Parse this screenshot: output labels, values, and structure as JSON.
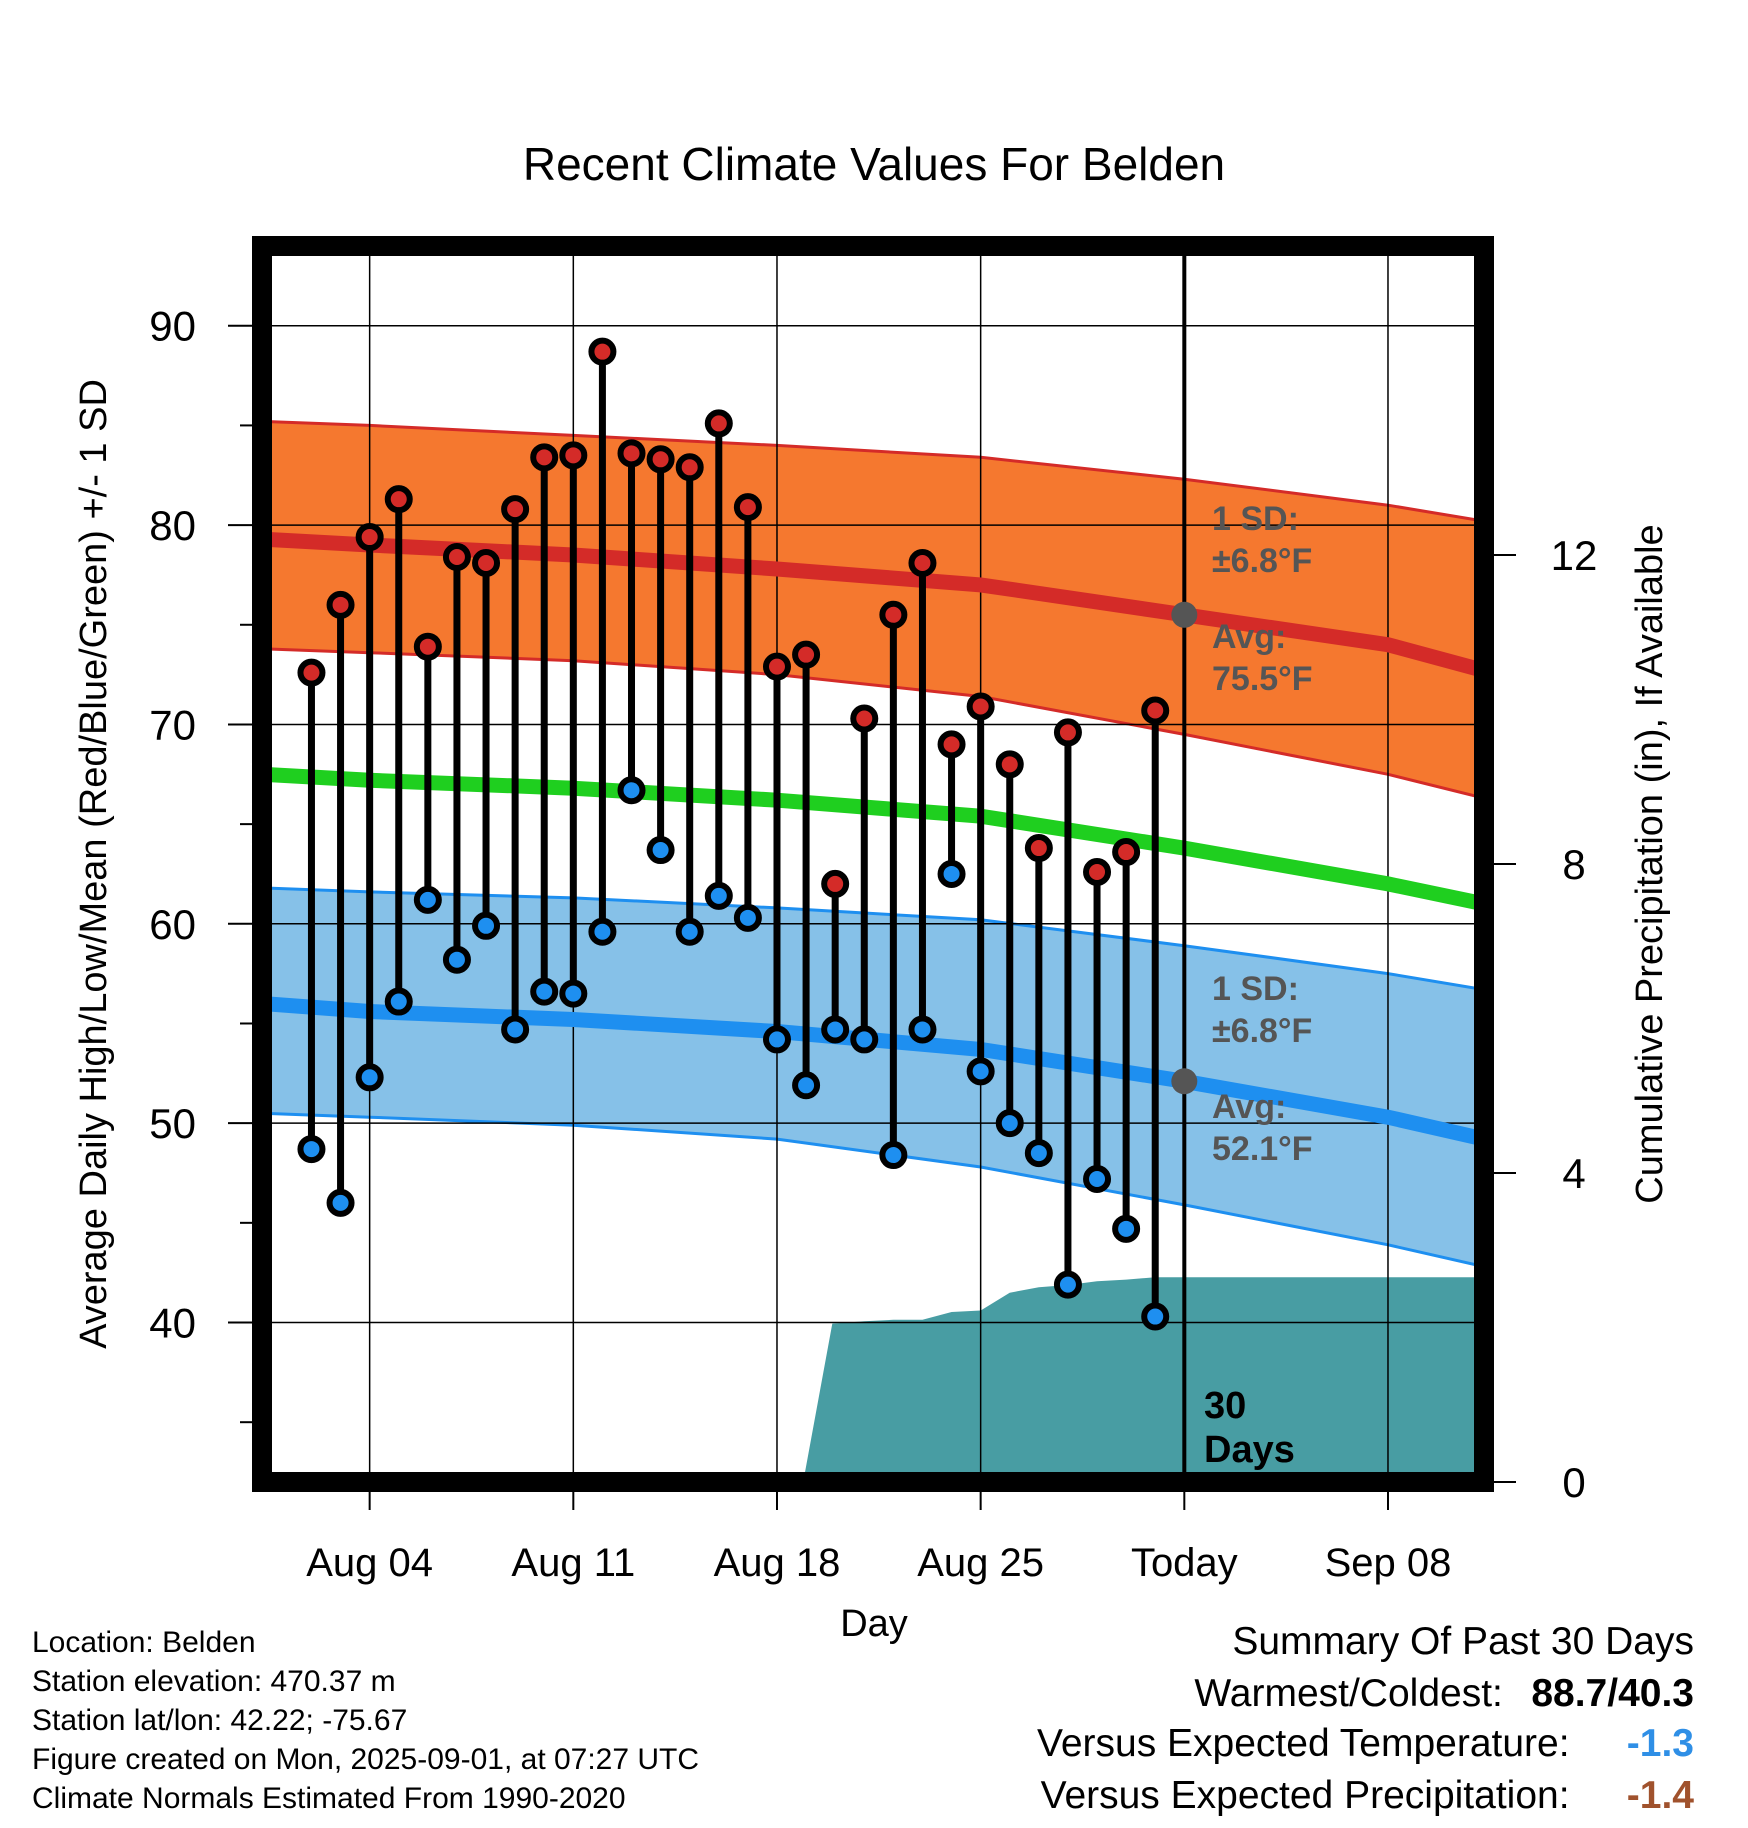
{
  "chart_data": {
    "type": "line",
    "title": "Recent Climate Values For Belden",
    "xlabel": "Day",
    "ylabel": "Average Daily High/Low/Mean (Red/Blue/Green) +/- 1 SD",
    "y2label": "Cumulative Precipitation (in), If Available",
    "ylim": [
      32,
      94
    ],
    "y2lim": [
      0,
      16
    ],
    "xlim": [
      -0.7,
      41.3
    ],
    "x_ticks": [
      {
        "day": 3,
        "label": "Aug 04"
      },
      {
        "day": 10,
        "label": "Aug 11"
      },
      {
        "day": 17,
        "label": "Aug 18"
      },
      {
        "day": 24,
        "label": "Aug 25"
      },
      {
        "day": 31,
        "label": "Today"
      },
      {
        "day": 38,
        "label": "Sep 08"
      }
    ],
    "y_ticks": [
      40,
      50,
      60,
      70,
      80,
      90
    ],
    "y2_ticks": [
      0,
      4,
      8,
      12
    ],
    "grid": true,
    "today_day": 31,
    "normals": {
      "days": [
        -0.7,
        3,
        10,
        17,
        24,
        31,
        38,
        41.3
      ],
      "high_avg": [
        79.3,
        79.0,
        78.5,
        77.8,
        77.0,
        75.5,
        74.0,
        72.7
      ],
      "high_upper": [
        85.2,
        85.0,
        84.5,
        84.0,
        83.4,
        82.3,
        81.0,
        80.2
      ],
      "high_lower": [
        73.8,
        73.6,
        73.2,
        72.5,
        71.4,
        69.5,
        67.5,
        66.3
      ],
      "mean_avg": [
        67.5,
        67.2,
        66.8,
        66.2,
        65.4,
        63.8,
        62.0,
        61.0
      ],
      "low_avg": [
        56.0,
        55.6,
        55.2,
        54.6,
        53.7,
        52.1,
        50.3,
        49.2
      ],
      "low_upper": [
        61.8,
        61.6,
        61.3,
        60.8,
        60.2,
        58.9,
        57.5,
        56.7
      ],
      "low_lower": [
        50.5,
        50.3,
        49.9,
        49.2,
        47.8,
        45.9,
        43.9,
        42.8
      ]
    },
    "series": [
      {
        "name": "High",
        "values": [
          72.6,
          76.0,
          79.4,
          81.3,
          73.9,
          78.4,
          78.1,
          80.8,
          83.4,
          83.5,
          88.7,
          83.6,
          83.3,
          82.9,
          85.1,
          80.9,
          72.9,
          73.5,
          62.0,
          70.3,
          75.5,
          78.1,
          69.0,
          70.9,
          68.0,
          63.8,
          69.6,
          62.6,
          63.6,
          70.7
        ]
      },
      {
        "name": "Low",
        "values": [
          48.7,
          46.0,
          52.3,
          56.1,
          61.2,
          58.2,
          59.9,
          54.7,
          56.6,
          56.5,
          59.6,
          66.7,
          63.7,
          59.6,
          61.4,
          60.3,
          54.2,
          51.9,
          54.7,
          54.2,
          48.4,
          54.7,
          62.5,
          52.6,
          50.0,
          48.5,
          41.9,
          47.2,
          44.7,
          40.3
        ]
      }
    ],
    "precip": {
      "days": [
        0,
        1,
        2,
        3,
        4,
        5,
        6,
        7,
        8,
        9,
        10,
        11,
        12,
        13,
        14,
        15,
        16,
        17,
        17.9,
        18.9,
        20,
        21,
        22,
        23,
        24,
        25,
        26,
        27,
        28,
        29,
        30,
        31,
        41.3
      ],
      "values": [
        0,
        0,
        0,
        0,
        0,
        0,
        0,
        0,
        0,
        0,
        0,
        0,
        0,
        0,
        0,
        0,
        0,
        0,
        0,
        2.05,
        2.08,
        2.1,
        2.1,
        2.2,
        2.22,
        2.45,
        2.52,
        2.55,
        2.6,
        2.62,
        2.65,
        2.65,
        2.65
      ]
    },
    "annotations": {
      "high_sd": "1 SD:",
      "high_sd_value": "±6.8°F",
      "high_avg_label": "Avg:",
      "high_avg_value": "75.5°F",
      "low_sd": "1 SD:",
      "low_sd_value": "±6.8°F",
      "low_avg_label": "Avg:",
      "low_avg_value": "52.1°F",
      "days_count": "30",
      "days_word": "Days"
    },
    "colors": {
      "high_band": "#f5782f",
      "high_line": "#d42b28",
      "mean_line": "#1fcf1f",
      "low_band": "#86c1e8",
      "low_line": "#1e8ff0",
      "precip": "#489da3",
      "high_dot": "#d42b28",
      "low_dot": "#1e8ff0"
    }
  },
  "footer": {
    "location": "Location: Belden",
    "elevation": "Station elevation: 470.37 m",
    "latlon": "Station lat/lon: 42.22; -75.67",
    "created": "Figure created on Mon, 2025-09-01, at 07:27 UTC",
    "normals": "Climate Normals Estimated From 1990-2020"
  },
  "summary": {
    "title": "Summary Of Past 30 Days",
    "warm_label": "Warmest/Coldest:",
    "warm_value": "88.7/40.3",
    "temp_label": "Versus Expected Temperature:",
    "temp_value": "-1.3",
    "temp_color": "#2f8fe6",
    "precip_label": "Versus Expected Precipitation:",
    "precip_value": "-1.4",
    "precip_color": "#a0522d"
  }
}
